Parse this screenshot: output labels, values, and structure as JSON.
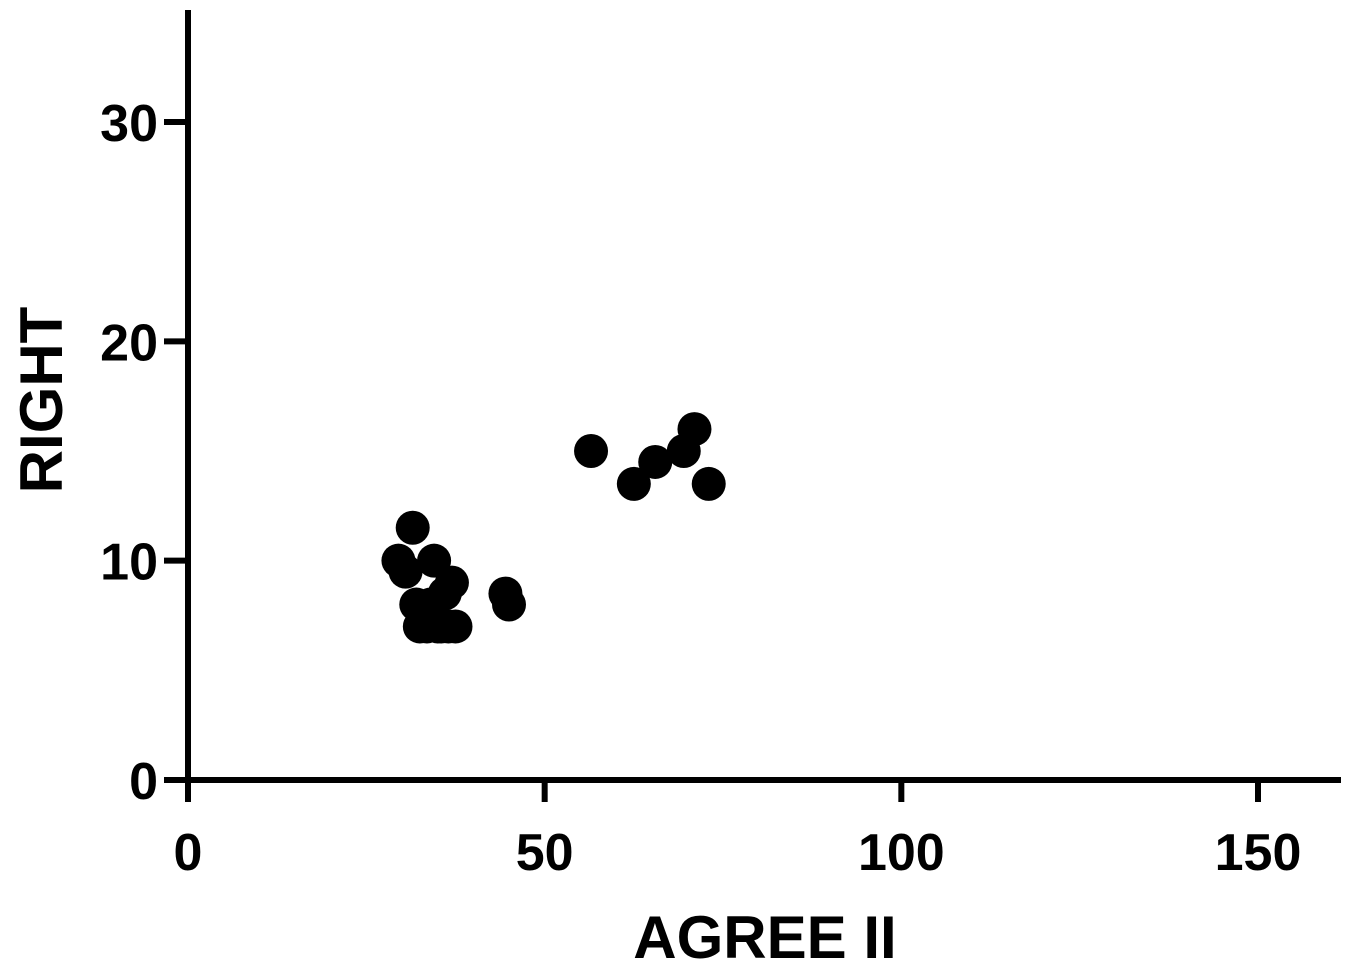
{
  "chart_data": {
    "type": "scatter",
    "xlabel": "AGREE II",
    "ylabel": "RIGHT",
    "xlim": [
      0,
      160
    ],
    "ylim": [
      0,
      35
    ],
    "xticks": [
      0,
      50,
      100,
      150
    ],
    "yticks": [
      0,
      10,
      20,
      30
    ],
    "grid": false,
    "marker_color": "#000000",
    "axis_color": "#000000",
    "points": [
      {
        "x": 29.5,
        "y": 10
      },
      {
        "x": 30.5,
        "y": 9.5
      },
      {
        "x": 31.5,
        "y": 11.5
      },
      {
        "x": 32,
        "y": 8
      },
      {
        "x": 32.5,
        "y": 7
      },
      {
        "x": 33.5,
        "y": 7
      },
      {
        "x": 34,
        "y": 8
      },
      {
        "x": 34.5,
        "y": 10
      },
      {
        "x": 35,
        "y": 7
      },
      {
        "x": 35.5,
        "y": 7
      },
      {
        "x": 36,
        "y": 8.5
      },
      {
        "x": 36.5,
        "y": 7
      },
      {
        "x": 37,
        "y": 9
      },
      {
        "x": 37.5,
        "y": 7
      },
      {
        "x": 44.5,
        "y": 8.5
      },
      {
        "x": 45,
        "y": 8
      },
      {
        "x": 56.5,
        "y": 15
      },
      {
        "x": 62.5,
        "y": 13.5
      },
      {
        "x": 65.5,
        "y": 14.5
      },
      {
        "x": 69.5,
        "y": 15
      },
      {
        "x": 71,
        "y": 16
      },
      {
        "x": 73,
        "y": 13.5
      }
    ]
  }
}
